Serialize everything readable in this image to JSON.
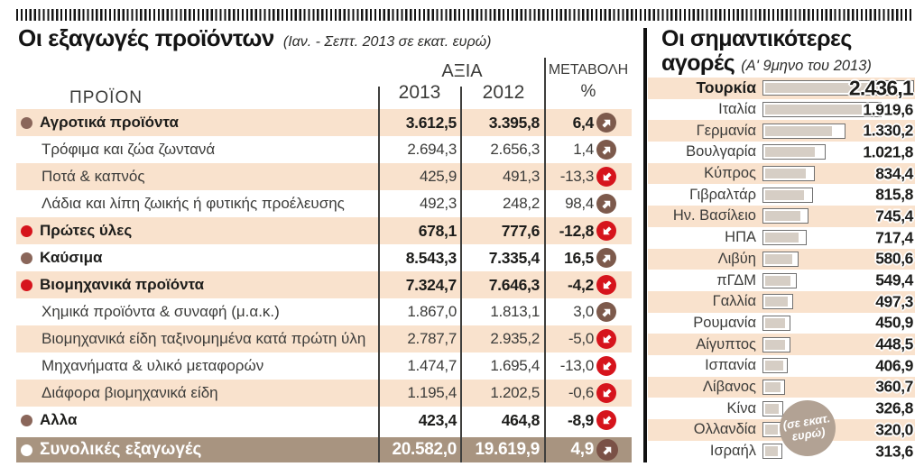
{
  "colors": {
    "shade": "#f9e2cd",
    "total_bar": "#a89480",
    "brown_accent": "#7d5a4c",
    "red_accent": "#d6141c",
    "bar_fill": "#d6cec5",
    "bar_border": "#6f6f6f",
    "badge": "#b2a294"
  },
  "exports": {
    "title": "Οι εξαγωγές προϊόντων",
    "subtitle": "(Ιαν. - Σεπτ. 2013 σε εκατ. ευρώ)",
    "columns": {
      "product": "ΠΡΟΪΟΝ",
      "value_group": "ΑΞΙΑ",
      "y2013": "2013",
      "y2012": "2012",
      "change_line1": "ΜΕΤΑΒΟΛΗ",
      "change_line2": "%"
    },
    "rows": [
      {
        "label": "Αγροτικά προϊόντα",
        "v2013": "3.612,5",
        "v2012": "3.395,8",
        "change": "6,4",
        "dir": "up",
        "bullet": "brown",
        "emphasis": true,
        "shade": true
      },
      {
        "label": "Τρόφιμα και ζώα ζωντανά",
        "v2013": "2.694,3",
        "v2012": "2.656,3",
        "change": "1,4",
        "dir": "up",
        "bullet": null,
        "emphasis": false,
        "shade": false
      },
      {
        "label": "Ποτά & καπνός",
        "v2013": "425,9",
        "v2012": "491,3",
        "change": "-13,3",
        "dir": "down",
        "bullet": null,
        "emphasis": false,
        "shade": true
      },
      {
        "label": "Λάδια και λίπη ζωικής ή φυτικής προέλευσης",
        "v2013": "492,3",
        "v2012": "248,2",
        "change": "98,4",
        "dir": "up",
        "bullet": null,
        "emphasis": false,
        "shade": false
      },
      {
        "label": "Πρώτες ύλες",
        "v2013": "678,1",
        "v2012": "777,6",
        "change": "-12,8",
        "dir": "down",
        "bullet": "red",
        "emphasis": true,
        "shade": true
      },
      {
        "label": "Καύσιμα",
        "v2013": "8.543,3",
        "v2012": "7.335,4",
        "change": "16,5",
        "dir": "up",
        "bullet": "brown",
        "emphasis": true,
        "shade": false
      },
      {
        "label": "Βιομηχανικά προϊόντα",
        "v2013": "7.324,7",
        "v2012": "7.646,3",
        "change": "-4,2",
        "dir": "down",
        "bullet": "red",
        "emphasis": true,
        "shade": true
      },
      {
        "label": "Χημικά προϊόντα & συναφή (μ.α.κ.)",
        "v2013": "1.867,0",
        "v2012": "1.813,1",
        "change": "3,0",
        "dir": "up",
        "bullet": null,
        "emphasis": false,
        "shade": false
      },
      {
        "label": "Βιομηχανικά είδη ταξινομημένα κατά πρώτη ύλη",
        "v2013": "2.787,7",
        "v2012": "2.935,2",
        "change": "-5,0",
        "dir": "down",
        "bullet": null,
        "emphasis": false,
        "shade": true
      },
      {
        "label": "Μηχανήματα & υλικό μεταφορών",
        "v2013": "1.474,7",
        "v2012": "1.695,4",
        "change": "-13,0",
        "dir": "down",
        "bullet": null,
        "emphasis": false,
        "shade": false
      },
      {
        "label": "Διάφορα βιομηχανικά είδη",
        "v2013": "1.195,4",
        "v2012": "1.202,5",
        "change": "-0,6",
        "dir": "down",
        "bullet": null,
        "emphasis": false,
        "shade": true
      },
      {
        "label": "Αλλα",
        "v2013": "423,4",
        "v2012": "464,8",
        "change": "-8,9",
        "dir": "down",
        "bullet": "brown",
        "emphasis": true,
        "shade": false
      },
      {
        "label": "Συνολικές εξαγωγές",
        "v2013": "20.582,0",
        "v2012": "19.619,9",
        "change": "4,9",
        "dir": "up",
        "bullet": "white",
        "emphasis": true,
        "shade": false,
        "total": true
      }
    ]
  },
  "markets": {
    "title_line1": "Οι σημαντικότερες",
    "title_line2": "αγορές",
    "subtitle": "(Α' 9μηνο του 2013)",
    "unit_badge": "(σε εκατ. ευρώ)",
    "rows": [
      {
        "country": "Τουρκία",
        "value": "2.436,1",
        "value_num": 2436.1,
        "highlight": true
      },
      {
        "country": "Ιταλία",
        "value": "1.919,6",
        "value_num": 1919.6,
        "highlight": false
      },
      {
        "country": "Γερμανία",
        "value": "1.330,2",
        "value_num": 1330.2,
        "highlight": false
      },
      {
        "country": "Βουλγαρία",
        "value": "1.021,8",
        "value_num": 1021.8,
        "highlight": false
      },
      {
        "country": "Κύπρος",
        "value": "834,4",
        "value_num": 834.4,
        "highlight": false
      },
      {
        "country": "Γιβραλτάρ",
        "value": "815,8",
        "value_num": 815.8,
        "highlight": false
      },
      {
        "country": "Ην. Βασίλειο",
        "value": "745,4",
        "value_num": 745.4,
        "highlight": false
      },
      {
        "country": "ΗΠΑ",
        "value": "717,4",
        "value_num": 717.4,
        "highlight": false
      },
      {
        "country": "Λιβύη",
        "value": "580,6",
        "value_num": 580.6,
        "highlight": false
      },
      {
        "country": "πΓΔΜ",
        "value": "549,4",
        "value_num": 549.4,
        "highlight": false
      },
      {
        "country": "Γαλλία",
        "value": "497,3",
        "value_num": 497.3,
        "highlight": false
      },
      {
        "country": "Ρουμανία",
        "value": "450,9",
        "value_num": 450.9,
        "highlight": false
      },
      {
        "country": "Αίγυπτος",
        "value": "448,5",
        "value_num": 448.5,
        "highlight": false
      },
      {
        "country": "Ισπανία",
        "value": "406,9",
        "value_num": 406.9,
        "highlight": false
      },
      {
        "country": "Λίβανος",
        "value": "360,7",
        "value_num": 360.7,
        "highlight": false
      },
      {
        "country": "Κίνα",
        "value": "326,8",
        "value_num": 326.8,
        "highlight": false
      },
      {
        "country": "Ολλανδία",
        "value": "320,0",
        "value_num": 320.0,
        "highlight": false
      },
      {
        "country": "Ισραήλ",
        "value": "313,6",
        "value_num": 313.6,
        "highlight": false
      }
    ]
  },
  "chart_data": [
    {
      "type": "table",
      "title": "Οι εξαγωγές προϊόντων (Ιαν. - Σεπτ. 2013 σε εκατ. ευρώ)",
      "columns": [
        "ΠΡΟΪΟΝ",
        "ΑΞΙΑ 2013",
        "ΑΞΙΑ 2012",
        "ΜΕΤΑΒΟΛΗ %"
      ],
      "rows": [
        [
          "Αγροτικά προϊόντα",
          3612.5,
          3395.8,
          6.4
        ],
        [
          "Τρόφιμα και ζώα ζωντανά",
          2694.3,
          2656.3,
          1.4
        ],
        [
          "Ποτά & καπνός",
          425.9,
          491.3,
          -13.3
        ],
        [
          "Λάδια και λίπη ζωικής ή φυτικής προέλευσης",
          492.3,
          248.2,
          98.4
        ],
        [
          "Πρώτες ύλες",
          678.1,
          777.6,
          -12.8
        ],
        [
          "Καύσιμα",
          8543.3,
          7335.4,
          16.5
        ],
        [
          "Βιομηχανικά προϊόντα",
          7324.7,
          7646.3,
          -4.2
        ],
        [
          "Χημικά προϊόντα & συναφή (μ.α.κ.)",
          1867.0,
          1813.1,
          3.0
        ],
        [
          "Βιομηχανικά είδη ταξινομημένα κατά πρώτη ύλη",
          2787.7,
          2935.2,
          -5.0
        ],
        [
          "Μηχανήματα & υλικό μεταφορών",
          1474.7,
          1695.4,
          -13.0
        ],
        [
          "Διάφορα βιομηχανικά είδη",
          1195.4,
          1202.5,
          -0.6
        ],
        [
          "Αλλα",
          423.4,
          464.8,
          -8.9
        ],
        [
          "Συνολικές εξαγωγές",
          20582.0,
          19619.9,
          4.9
        ]
      ]
    },
    {
      "type": "bar",
      "orientation": "horizontal",
      "title": "Οι σημαντικότερες αγορές (Α' 9μηνο του 2013)",
      "unit": "σε εκατ. ευρώ",
      "categories": [
        "Τουρκία",
        "Ιταλία",
        "Γερμανία",
        "Βουλγαρία",
        "Κύπρος",
        "Γιβραλτάρ",
        "Ην. Βασίλειο",
        "ΗΠΑ",
        "Λιβύη",
        "πΓΔΜ",
        "Γαλλία",
        "Ρουμανία",
        "Αίγυπτος",
        "Ισπανία",
        "Λίβανος",
        "Κίνα",
        "Ολλανδία",
        "Ισραήλ"
      ],
      "values": [
        2436.1,
        1919.6,
        1330.2,
        1021.8,
        834.4,
        815.8,
        745.4,
        717.4,
        580.6,
        549.4,
        497.3,
        450.9,
        448.5,
        406.9,
        360.7,
        326.8,
        320.0,
        313.6
      ],
      "xlim": [
        0,
        2500
      ],
      "grid": false,
      "legend": false
    }
  ]
}
